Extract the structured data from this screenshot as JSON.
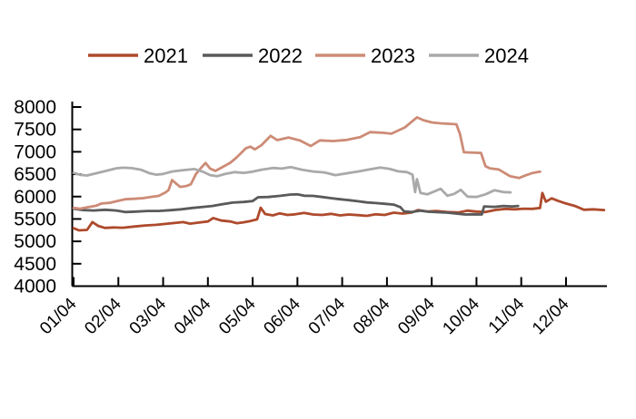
{
  "colors": {
    "background": "#ffffff",
    "axis": "#000000",
    "series_2021": "#ae4a2c",
    "series_2022": "#5a5a5a",
    "series_2023": "#cd8b76",
    "series_2024": "#a9a9a9"
  },
  "legend": [
    {
      "label": "2021",
      "color": "#ae4a2c"
    },
    {
      "label": "2022",
      "color": "#5a5a5a"
    },
    {
      "label": "2023",
      "color": "#cd8b76"
    },
    {
      "label": "2024",
      "color": "#a9a9a9"
    }
  ],
  "chart_data": {
    "type": "line",
    "title": "",
    "xlabel": "",
    "ylabel": "",
    "ylim": [
      4000,
      8000
    ],
    "ytick_step": 500,
    "ytick_labels": [
      "4000",
      "4500",
      "5000",
      "5500",
      "6000",
      "6500",
      "7000",
      "7500",
      "8000"
    ],
    "x_ticklabels": [
      "01/04",
      "02/04",
      "03/04",
      "04/04",
      "05/04",
      "06/04",
      "07/04",
      "08/04",
      "09/04",
      "10/04",
      "11/04",
      "12/04"
    ],
    "x_unit": "month index (0 = 01/04 ... 11 = 12/04)",
    "grid": false,
    "legend_position": "top",
    "series": [
      {
        "name": "2021",
        "color": "#ae4a2c",
        "points": [
          [
            0,
            5295
          ],
          [
            0.12,
            5245
          ],
          [
            0.3,
            5255
          ],
          [
            0.42,
            5430
          ],
          [
            0.55,
            5345
          ],
          [
            0.7,
            5300
          ],
          [
            0.9,
            5310
          ],
          [
            1.1,
            5305
          ],
          [
            1.35,
            5330
          ],
          [
            1.6,
            5355
          ],
          [
            1.85,
            5370
          ],
          [
            2.0,
            5385
          ],
          [
            2.2,
            5405
          ],
          [
            2.45,
            5430
          ],
          [
            2.6,
            5395
          ],
          [
            2.8,
            5420
          ],
          [
            3.0,
            5445
          ],
          [
            3.12,
            5520
          ],
          [
            3.3,
            5465
          ],
          [
            3.5,
            5445
          ],
          [
            3.65,
            5405
          ],
          [
            3.8,
            5425
          ],
          [
            3.95,
            5455
          ],
          [
            4.1,
            5490
          ],
          [
            4.18,
            5750
          ],
          [
            4.28,
            5610
          ],
          [
            4.45,
            5580
          ],
          [
            4.6,
            5625
          ],
          [
            4.78,
            5590
          ],
          [
            4.95,
            5605
          ],
          [
            5.15,
            5635
          ],
          [
            5.35,
            5600
          ],
          [
            5.55,
            5590
          ],
          [
            5.75,
            5615
          ],
          [
            5.95,
            5580
          ],
          [
            6.15,
            5600
          ],
          [
            6.35,
            5585
          ],
          [
            6.55,
            5570
          ],
          [
            6.75,
            5605
          ],
          [
            6.95,
            5590
          ],
          [
            7.15,
            5640
          ],
          [
            7.35,
            5620
          ],
          [
            7.55,
            5645
          ],
          [
            7.7,
            5700
          ],
          [
            7.9,
            5665
          ],
          [
            8.1,
            5680
          ],
          [
            8.35,
            5655
          ],
          [
            8.6,
            5645
          ],
          [
            8.8,
            5685
          ],
          [
            9.0,
            5665
          ],
          [
            9.2,
            5655
          ],
          [
            9.45,
            5705
          ],
          [
            9.65,
            5725
          ],
          [
            9.85,
            5715
          ],
          [
            10.05,
            5730
          ],
          [
            10.25,
            5725
          ],
          [
            10.42,
            5745
          ],
          [
            10.47,
            6080
          ],
          [
            10.55,
            5885
          ],
          [
            10.68,
            5960
          ],
          [
            10.82,
            5905
          ],
          [
            11.0,
            5845
          ],
          [
            11.2,
            5790
          ],
          [
            11.4,
            5705
          ],
          [
            11.6,
            5715
          ],
          [
            11.85,
            5700
          ]
        ]
      },
      {
        "name": "2022",
        "color": "#5a5a5a",
        "points": [
          [
            0,
            5730
          ],
          [
            0.2,
            5700
          ],
          [
            0.45,
            5690
          ],
          [
            0.7,
            5705
          ],
          [
            0.95,
            5690
          ],
          [
            1.15,
            5655
          ],
          [
            1.4,
            5665
          ],
          [
            1.65,
            5680
          ],
          [
            1.9,
            5680
          ],
          [
            2.15,
            5695
          ],
          [
            2.4,
            5715
          ],
          [
            2.65,
            5745
          ],
          [
            2.9,
            5770
          ],
          [
            3.1,
            5790
          ],
          [
            3.3,
            5825
          ],
          [
            3.55,
            5865
          ],
          [
            3.8,
            5880
          ],
          [
            4.0,
            5900
          ],
          [
            4.12,
            5985
          ],
          [
            4.35,
            5990
          ],
          [
            4.6,
            6015
          ],
          [
            4.85,
            6045
          ],
          [
            5.0,
            6050
          ],
          [
            5.15,
            6020
          ],
          [
            5.35,
            6015
          ],
          [
            5.55,
            5990
          ],
          [
            5.75,
            5965
          ],
          [
            5.95,
            5940
          ],
          [
            6.15,
            5920
          ],
          [
            6.35,
            5895
          ],
          [
            6.55,
            5870
          ],
          [
            6.75,
            5855
          ],
          [
            6.95,
            5840
          ],
          [
            7.15,
            5820
          ],
          [
            7.3,
            5765
          ],
          [
            7.38,
            5670
          ],
          [
            7.55,
            5655
          ],
          [
            7.75,
            5685
          ],
          [
            7.95,
            5660
          ],
          [
            8.15,
            5650
          ],
          [
            8.35,
            5640
          ],
          [
            8.55,
            5620
          ],
          [
            8.75,
            5600
          ],
          [
            8.95,
            5605
          ],
          [
            9.12,
            5600
          ],
          [
            9.17,
            5780
          ],
          [
            9.4,
            5770
          ],
          [
            9.6,
            5790
          ],
          [
            9.8,
            5780
          ],
          [
            9.93,
            5790
          ]
        ]
      },
      {
        "name": "2023",
        "color": "#cd8b76",
        "points": [
          [
            0,
            5745
          ],
          [
            0.15,
            5730
          ],
          [
            0.3,
            5760
          ],
          [
            0.5,
            5795
          ],
          [
            0.62,
            5845
          ],
          [
            0.8,
            5860
          ],
          [
            1.0,
            5905
          ],
          [
            1.15,
            5940
          ],
          [
            1.35,
            5950
          ],
          [
            1.55,
            5965
          ],
          [
            1.75,
            5995
          ],
          [
            1.9,
            6015
          ],
          [
            2.05,
            6090
          ],
          [
            2.12,
            6145
          ],
          [
            2.2,
            6370
          ],
          [
            2.28,
            6300
          ],
          [
            2.38,
            6215
          ],
          [
            2.52,
            6235
          ],
          [
            2.62,
            6275
          ],
          [
            2.73,
            6500
          ],
          [
            2.85,
            6645
          ],
          [
            2.95,
            6750
          ],
          [
            3.05,
            6625
          ],
          [
            3.17,
            6575
          ],
          [
            3.32,
            6655
          ],
          [
            3.5,
            6755
          ],
          [
            3.62,
            6855
          ],
          [
            3.72,
            6950
          ],
          [
            3.85,
            7080
          ],
          [
            3.95,
            7115
          ],
          [
            4.05,
            7055
          ],
          [
            4.2,
            7150
          ],
          [
            4.4,
            7355
          ],
          [
            4.55,
            7260
          ],
          [
            4.8,
            7320
          ],
          [
            5.05,
            7255
          ],
          [
            5.3,
            7130
          ],
          [
            5.5,
            7255
          ],
          [
            5.8,
            7240
          ],
          [
            6.1,
            7265
          ],
          [
            6.4,
            7325
          ],
          [
            6.62,
            7440
          ],
          [
            6.9,
            7425
          ],
          [
            7.1,
            7405
          ],
          [
            7.4,
            7545
          ],
          [
            7.67,
            7770
          ],
          [
            7.82,
            7705
          ],
          [
            8.0,
            7655
          ],
          [
            8.2,
            7635
          ],
          [
            8.55,
            7615
          ],
          [
            8.63,
            7400
          ],
          [
            8.72,
            6990
          ],
          [
            9.1,
            6975
          ],
          [
            9.2,
            6680
          ],
          [
            9.3,
            6630
          ],
          [
            9.5,
            6605
          ],
          [
            9.75,
            6455
          ],
          [
            9.95,
            6415
          ],
          [
            10.1,
            6475
          ],
          [
            10.25,
            6525
          ],
          [
            10.42,
            6555
          ]
        ]
      },
      {
        "name": "2024",
        "color": "#a9a9a9",
        "points": [
          [
            0,
            6530
          ],
          [
            0.15,
            6485
          ],
          [
            0.3,
            6470
          ],
          [
            0.5,
            6520
          ],
          [
            0.75,
            6580
          ],
          [
            0.95,
            6630
          ],
          [
            1.1,
            6645
          ],
          [
            1.3,
            6635
          ],
          [
            1.5,
            6600
          ],
          [
            1.7,
            6520
          ],
          [
            1.85,
            6490
          ],
          [
            2.0,
            6505
          ],
          [
            2.2,
            6560
          ],
          [
            2.45,
            6590
          ],
          [
            2.7,
            6615
          ],
          [
            2.9,
            6550
          ],
          [
            3.05,
            6480
          ],
          [
            3.2,
            6455
          ],
          [
            3.4,
            6510
          ],
          [
            3.6,
            6545
          ],
          [
            3.8,
            6530
          ],
          [
            4.0,
            6555
          ],
          [
            4.2,
            6600
          ],
          [
            4.45,
            6640
          ],
          [
            4.65,
            6625
          ],
          [
            4.85,
            6660
          ],
          [
            5.1,
            6600
          ],
          [
            5.35,
            6560
          ],
          [
            5.6,
            6540
          ],
          [
            5.85,
            6480
          ],
          [
            6.1,
            6520
          ],
          [
            6.35,
            6560
          ],
          [
            6.6,
            6605
          ],
          [
            6.85,
            6650
          ],
          [
            7.05,
            6620
          ],
          [
            7.25,
            6565
          ],
          [
            7.45,
            6545
          ],
          [
            7.57,
            6490
          ],
          [
            7.63,
            6100
          ],
          [
            7.67,
            6390
          ],
          [
            7.75,
            6080
          ],
          [
            7.9,
            6050
          ],
          [
            8.05,
            6110
          ],
          [
            8.2,
            6175
          ],
          [
            8.35,
            6020
          ],
          [
            8.5,
            6060
          ],
          [
            8.65,
            6150
          ],
          [
            8.8,
            6000
          ],
          [
            9.0,
            5990
          ],
          [
            9.2,
            6050
          ],
          [
            9.4,
            6140
          ],
          [
            9.6,
            6100
          ],
          [
            9.76,
            6095
          ]
        ]
      }
    ]
  }
}
